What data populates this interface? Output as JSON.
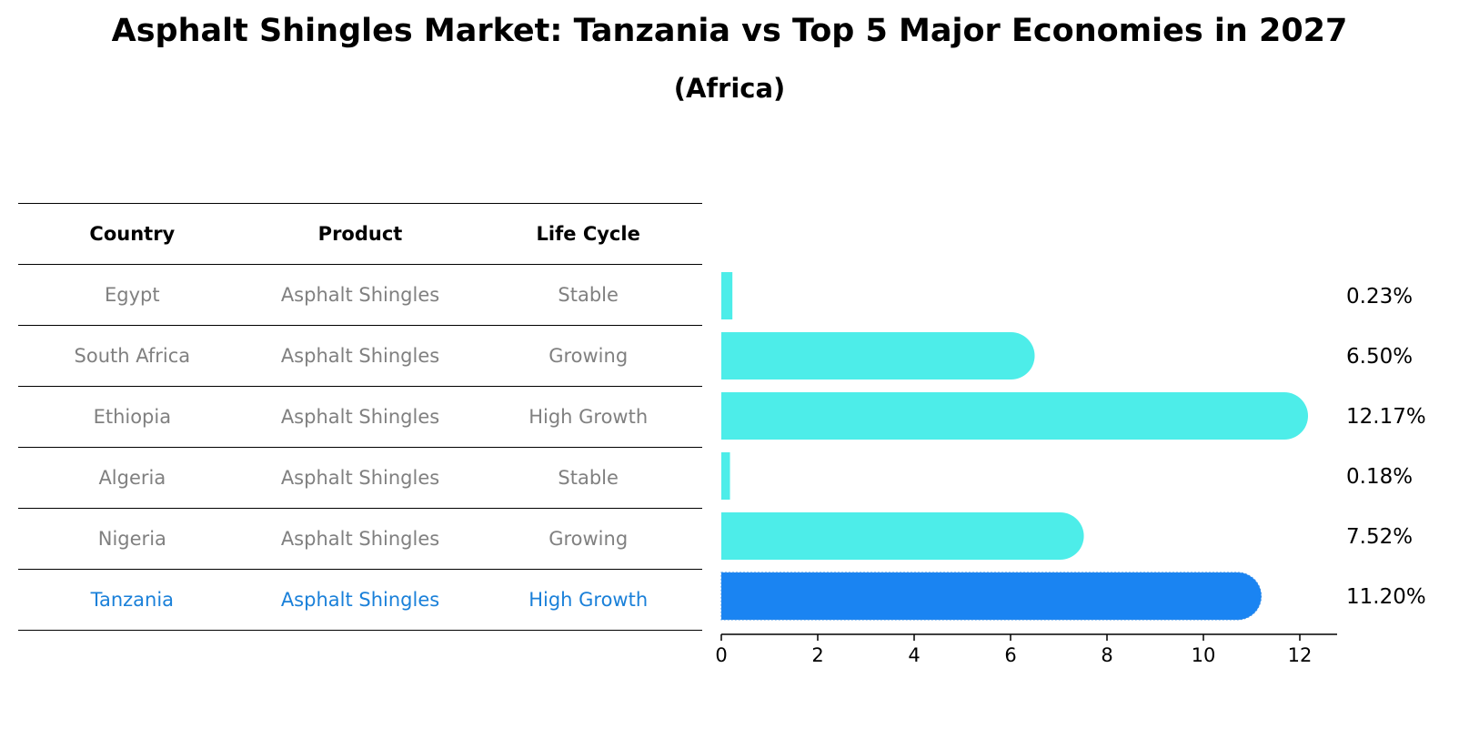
{
  "title": "Asphalt Shingles Market: Tanzania vs Top 5 Major Economies in 2027",
  "subtitle": "(Africa)",
  "table": {
    "headers": [
      "Country",
      "Product",
      "Life Cycle"
    ],
    "rows": [
      [
        "Egypt",
        "Asphalt Shingles",
        "Stable"
      ],
      [
        "South Africa",
        "Asphalt Shingles",
        "Growing"
      ],
      [
        "Ethiopia",
        "Asphalt Shingles",
        "High Growth"
      ],
      [
        "Algeria",
        "Asphalt Shingles",
        "Stable"
      ],
      [
        "Nigeria",
        "Asphalt Shingles",
        "Growing"
      ],
      [
        "Tanzania",
        "Asphalt Shingles",
        "High Growth"
      ]
    ]
  },
  "chart_data": {
    "type": "bar",
    "orientation": "horizontal",
    "categories": [
      "Egypt",
      "South Africa",
      "Ethiopia",
      "Algeria",
      "Nigeria",
      "Tanzania"
    ],
    "values": [
      0.23,
      6.5,
      12.17,
      0.18,
      7.52,
      11.2
    ],
    "value_labels": [
      "0.23%",
      "6.50%",
      "12.17%",
      "0.18%",
      "7.52%",
      "11.20%"
    ],
    "highlight": "Tanzania",
    "xlim": [
      0,
      12.8
    ],
    "xticks": [
      0,
      2,
      4,
      6,
      8,
      10,
      12
    ],
    "colors": {
      "default": "#4dede9",
      "highlight": "#1a84f2",
      "highlight_text": "#1a80d9",
      "muted_text": "#808080"
    }
  }
}
